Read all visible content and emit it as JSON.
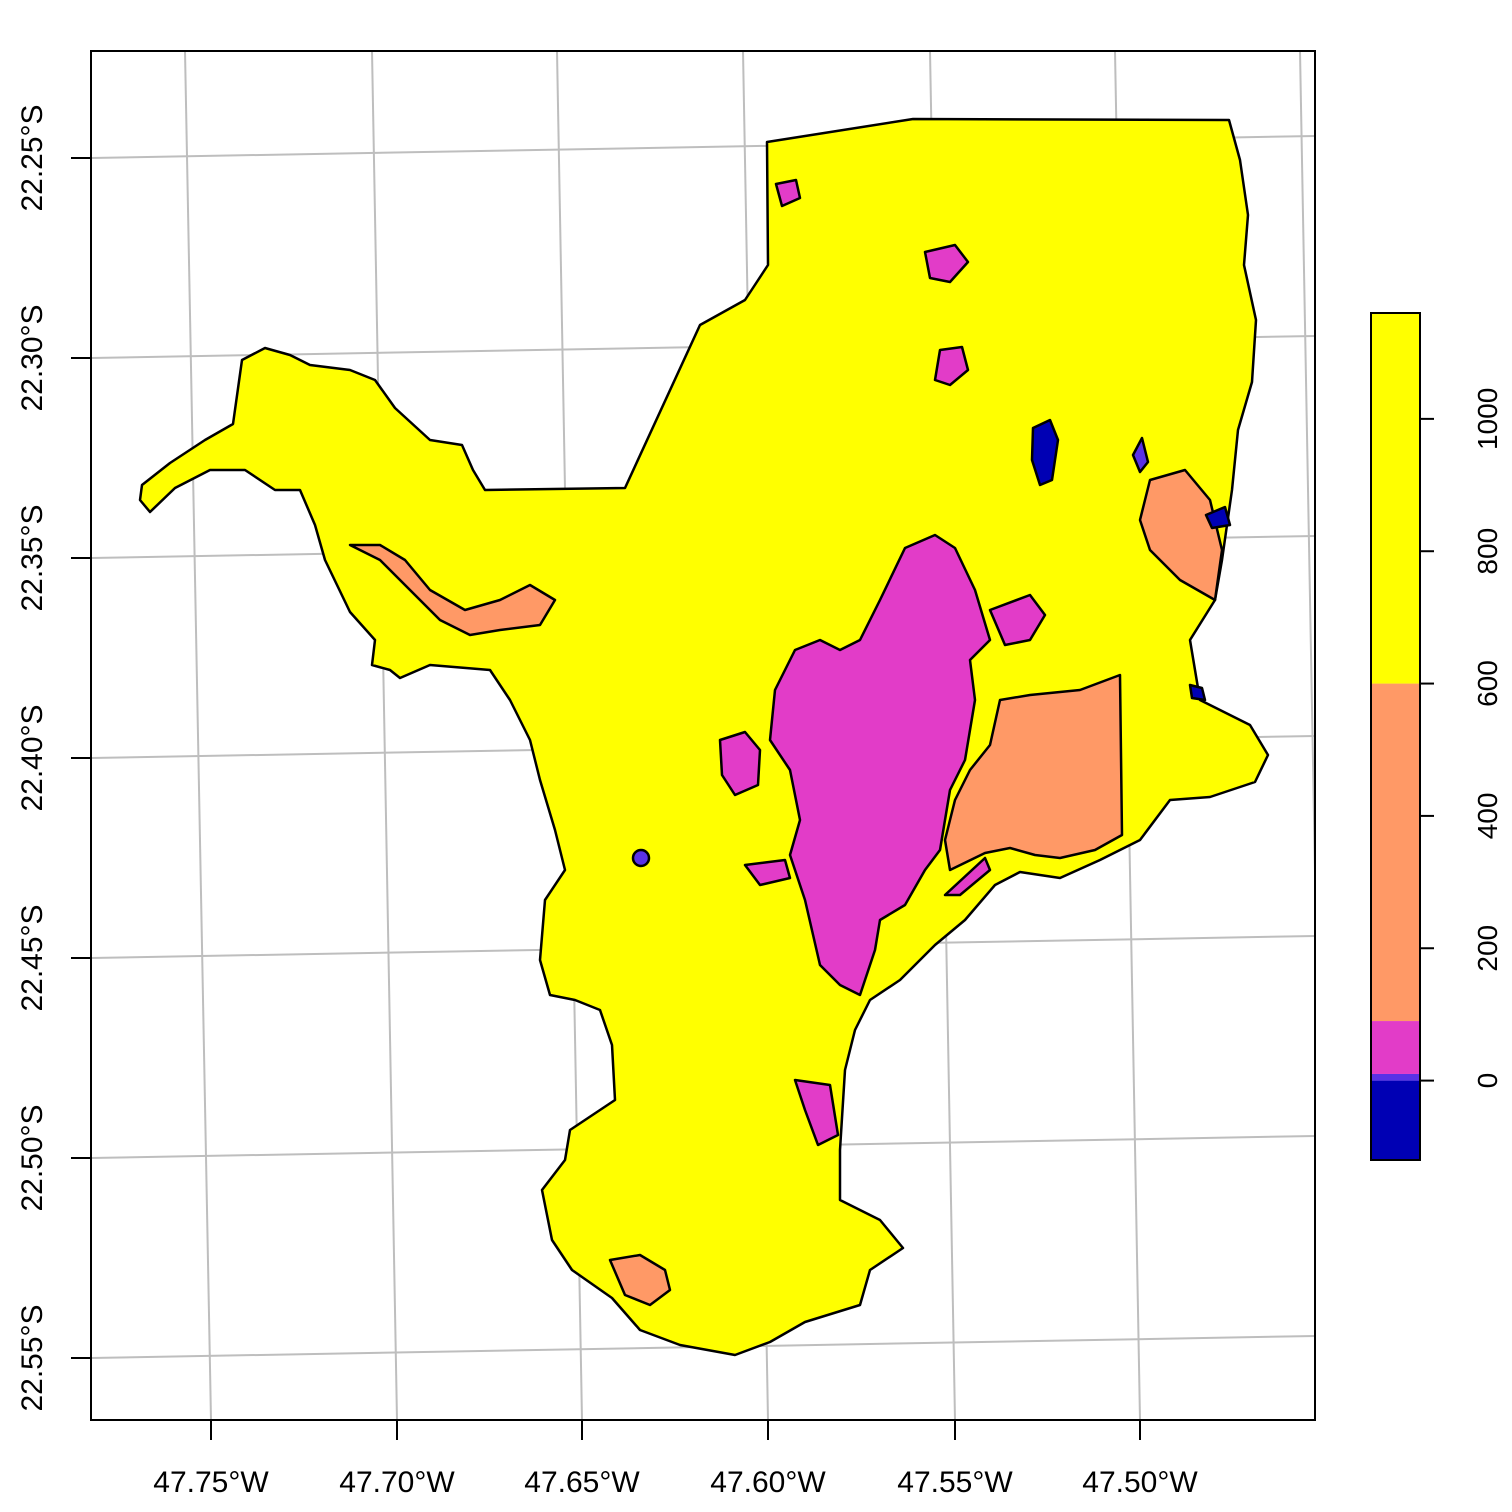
{
  "map": {
    "graticule": {
      "longitude_labels": [
        "47.75°W",
        "47.70°W",
        "47.65°W",
        "47.60°W",
        "47.55°W",
        "47.50°W"
      ],
      "latitude_labels": [
        "22.25°S",
        "22.30°S",
        "22.35°S",
        "22.40°S",
        "22.45°S",
        "22.50°S",
        "22.55°S"
      ],
      "grid_color": "#bebebe"
    },
    "classes": [
      {
        "key": "water",
        "color": "#0000b4"
      },
      {
        "key": "thin-band",
        "color": "#5a32e6"
      },
      {
        "key": "urban",
        "color": "#e23cc8"
      },
      {
        "key": "mid",
        "color": "#ff9966"
      },
      {
        "key": "high",
        "color": "#ffff00"
      }
    ]
  },
  "legend": {
    "tick_labels": [
      "0",
      "200",
      "400",
      "600",
      "800",
      "1000"
    ],
    "bands": [
      {
        "from": -120,
        "to": 0,
        "color": "#0000b4"
      },
      {
        "from": 0,
        "to": 10,
        "color": "#5a32e6"
      },
      {
        "from": 10,
        "to": 90,
        "color": "#e23cc8"
      },
      {
        "from": 90,
        "to": 600,
        "color": "#ff9966"
      },
      {
        "from": 600,
        "to": 1160,
        "color": "#ffff00"
      }
    ],
    "range": [
      -120,
      1160
    ]
  }
}
